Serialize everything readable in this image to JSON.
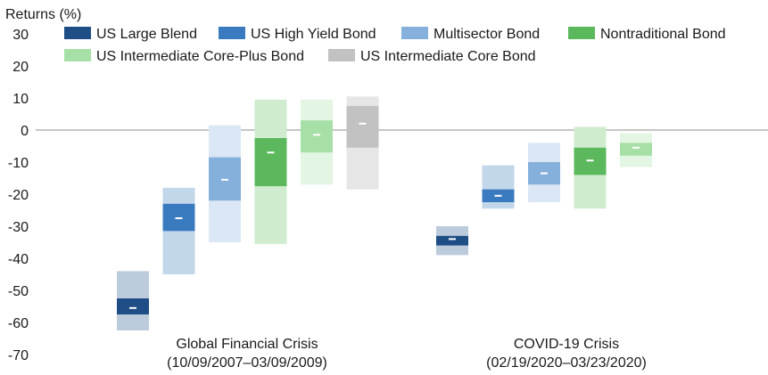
{
  "chart_data": {
    "type": "box",
    "ylabel": "Returns (%)",
    "ylim": [
      -70,
      30
    ],
    "yticks": [
      30,
      20,
      10,
      0,
      -10,
      -20,
      -30,
      -40,
      -50,
      -60,
      -70
    ],
    "grid": false,
    "zero_line": true,
    "legend_position": "top",
    "series": [
      {
        "name": "US Large Blend",
        "color": "#1f4e86",
        "range_color": "#bccbdc"
      },
      {
        "name": "US High Yield Bond",
        "color": "#3a7bbf",
        "range_color": "#c3d7ea"
      },
      {
        "name": "Multisector Bond",
        "color": "#86b0dc",
        "range_color": "#dbe7f5"
      },
      {
        "name": "Nontraditional Bond",
        "color": "#5cb85c",
        "range_color": "#cfeccf"
      },
      {
        "name": "US Intermediate Core-Plus Bond",
        "color": "#a6e0a6",
        "range_color": "#e3f5e3"
      },
      {
        "name": "US Intermediate Core Bond",
        "color": "#c2c2c2",
        "range_color": "#e6e6e6"
      }
    ],
    "groups": [
      {
        "label_line1": "Global Financial Crisis",
        "label_line2": "(10/09/2007–03/09/2009)",
        "boxes": [
          {
            "min": -62.5,
            "q1": -57.5,
            "median": -55.5,
            "q3": -52.5,
            "max": -44
          },
          {
            "min": -45,
            "q1": -31.5,
            "median": -27.5,
            "q3": -23,
            "max": -18
          },
          {
            "min": -35,
            "q1": -22,
            "median": -15.5,
            "q3": -8.5,
            "max": 1.5
          },
          {
            "min": -35.5,
            "q1": -17.5,
            "median": -7,
            "q3": -2.5,
            "max": 9.5
          },
          {
            "min": -17,
            "q1": -7,
            "median": -1.5,
            "q3": 3,
            "max": 9.5
          },
          {
            "min": -18.5,
            "q1": -5.5,
            "median": 2,
            "q3": 7.5,
            "max": 10.5
          }
        ]
      },
      {
        "label_line1": "COVID-19 Crisis",
        "label_line2": "(02/19/2020–03/23/2020)",
        "boxes": [
          {
            "min": -39,
            "q1": -36,
            "median": -34,
            "q3": -33,
            "max": -30
          },
          {
            "min": -24.5,
            "q1": -22.5,
            "median": -20.5,
            "q3": -18.5,
            "max": -11
          },
          {
            "min": -22.5,
            "q1": -17,
            "median": -13.5,
            "q3": -10,
            "max": -4
          },
          {
            "min": -24.5,
            "q1": -14,
            "median": -9.5,
            "q3": -5.5,
            "max": 1
          },
          {
            "min": -11.5,
            "q1": -8,
            "median": -5.5,
            "q3": -4,
            "max": -1
          }
        ]
      }
    ]
  }
}
